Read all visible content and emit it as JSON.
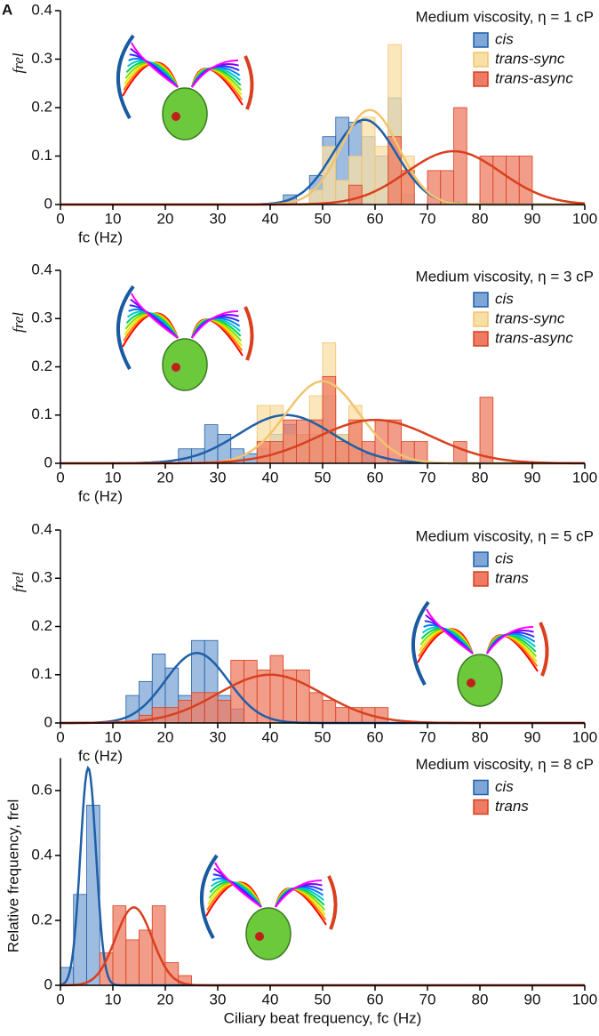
{
  "chart_data": [
    {
      "type": "histogram",
      "panel_label": "A",
      "title": "Medium viscosity, η = 1 cP",
      "xlabel": "fc (Hz)",
      "ylabel": "frel",
      "xlim": [
        0,
        100
      ],
      "xticks": [
        0,
        10,
        20,
        30,
        40,
        50,
        60,
        70,
        80,
        90,
        100
      ],
      "ylim": [
        0,
        0.4
      ],
      "yticks": [
        0,
        0.1,
        0.2,
        0.3,
        0.4
      ],
      "legend": "upper right",
      "series": [
        {
          "name": "cis",
          "color": "#1f5fa8",
          "fill": "#7ea6d6",
          "bins": [
            42.5,
            45,
            47.5,
            50,
            52.5,
            55,
            57.5,
            60,
            62.5,
            65,
            67.5
          ],
          "values": [
            0.02,
            0,
            0.06,
            0.14,
            0.18,
            0.17,
            0.14,
            0.1,
            0.22,
            0.02
          ],
          "fit": {
            "mean": 58,
            "sd": 6,
            "peak": 0.175
          }
        },
        {
          "name": "trans-sync",
          "color": "#f2c46e",
          "fill": "#f8dfa6",
          "bins": [
            47.5,
            50,
            52.5,
            55,
            57.5,
            60,
            62.5,
            65,
            67.5
          ],
          "values": [
            0.03,
            0.12,
            0.05,
            0.1,
            0.18,
            0.12,
            0.33,
            0.1
          ],
          "fit": {
            "mean": 59,
            "sd": 5.5,
            "peak": 0.195
          }
        },
        {
          "name": "trans-async",
          "color": "#d9401f",
          "fill": "#ee7b63",
          "bins": [
            55,
            57.5,
            60,
            62.5,
            65,
            67.5,
            70,
            72.5,
            75,
            77.5,
            80,
            82.5,
            85,
            87.5,
            90
          ],
          "values": [
            0.04,
            0,
            0,
            0.14,
            0.07,
            0,
            0.07,
            0.07,
            0.2,
            0,
            0.1,
            0.1,
            0.1,
            0.1
          ],
          "fit": {
            "mean": 75,
            "sd": 9,
            "peak": 0.11
          }
        }
      ]
    },
    {
      "type": "histogram",
      "title": "Medium viscosity, η = 3 cP",
      "xlabel": "fc (Hz)",
      "ylabel": "frel",
      "xlim": [
        0,
        100
      ],
      "xticks": [
        0,
        10,
        20,
        30,
        40,
        50,
        60,
        70,
        80,
        90,
        100
      ],
      "ylim": [
        0,
        0.4
      ],
      "yticks": [
        0,
        0.1,
        0.2,
        0.3,
        0.4
      ],
      "legend": "upper right",
      "series": [
        {
          "name": "cis",
          "color": "#1f5fa8",
          "fill": "#7ea6d6",
          "bins": [
            22.5,
            25,
            27.5,
            30,
            32.5,
            35,
            37.5,
            40,
            42.5,
            45,
            47.5,
            50,
            52.5,
            55,
            57.5,
            60
          ],
          "values": [
            0.03,
            0.03,
            0.08,
            0.06,
            0.03,
            0.02,
            0.03,
            0.06,
            0.08,
            0.06,
            0.06,
            0.14,
            0.06,
            0.03,
            0.02
          ],
          "fit": {
            "mean": 43,
            "sd": 9,
            "peak": 0.1
          }
        },
        {
          "name": "trans-sync",
          "color": "#f2c46e",
          "fill": "#f8dfa6",
          "bins": [
            37.5,
            40,
            42.5,
            45,
            47.5,
            50,
            52.5,
            55,
            57.5
          ],
          "values": [
            0.12,
            0.12,
            0.06,
            0.06,
            0.14,
            0.25,
            0.06,
            0.12
          ],
          "fit": {
            "mean": 50,
            "sd": 7,
            "peak": 0.17
          }
        },
        {
          "name": "trans-async",
          "color": "#d9401f",
          "fill": "#ee7b63",
          "bins": [
            37.5,
            40,
            42.5,
            45,
            47.5,
            50,
            52.5,
            55,
            57.5,
            60,
            62.5,
            65,
            67.5,
            70,
            72.5,
            75,
            77.5,
            80,
            82.5
          ],
          "values": [
            0.045,
            0.045,
            0.09,
            0.09,
            0.09,
            0.18,
            0.045,
            0.09,
            0.045,
            0.09,
            0.09,
            0.045,
            0.045,
            0,
            0,
            0.045,
            0,
            0.137
          ],
          "fit": {
            "mean": 60,
            "sd": 11,
            "peak": 0.09
          }
        }
      ]
    },
    {
      "type": "histogram",
      "title": "Medium viscosity, η = 5 cP",
      "xlabel": "fc (Hz)",
      "ylabel": "frel",
      "xlim": [
        0,
        100
      ],
      "xticks": [
        0,
        10,
        20,
        30,
        40,
        50,
        60,
        70,
        80,
        90,
        100
      ],
      "ylim": [
        0,
        0.4
      ],
      "yticks": [
        0,
        0.1,
        0.2,
        0.3,
        0.4
      ],
      "legend": "upper right",
      "series": [
        {
          "name": "cis",
          "color": "#1f5fa8",
          "fill": "#7ea6d6",
          "bins": [
            12.5,
            15,
            17.5,
            20,
            22.5,
            25,
            27.5,
            30,
            32.5,
            35
          ],
          "values": [
            0.057,
            0.086,
            0.143,
            0.114,
            0.057,
            0.171,
            0.171,
            0.057,
            0.029
          ],
          "fit": {
            "mean": 26,
            "sd": 6,
            "peak": 0.145
          }
        },
        {
          "name": "trans",
          "color": "#d9401f",
          "fill": "#ee7b63",
          "bins": [
            15,
            17.5,
            20,
            22.5,
            25,
            27.5,
            30,
            32.5,
            35,
            37.5,
            40,
            42.5,
            45,
            47.5,
            50,
            52.5,
            55,
            57.5,
            60,
            62.5
          ],
          "values": [
            0.016,
            0.032,
            0.032,
            0.047,
            0.063,
            0.063,
            0.047,
            0.13,
            0.13,
            0.11,
            0.14,
            0.11,
            0.11,
            0.063,
            0.047,
            0.032,
            0.032,
            0.032,
            0.032
          ],
          "fit": {
            "mean": 40,
            "sd": 10,
            "peak": 0.1
          }
        }
      ]
    },
    {
      "type": "histogram",
      "title": "Medium viscosity, η = 8 cP",
      "xlabel": "Ciliary beat frequency, fc (Hz)",
      "ylabel": "Relative frequency, frel",
      "xlim": [
        0,
        100
      ],
      "xticks": [
        0,
        10,
        20,
        30,
        40,
        50,
        60,
        70,
        80,
        90,
        100
      ],
      "ylim": [
        0,
        0.7
      ],
      "yticks": [
        0,
        0.2,
        0.4,
        0.6
      ],
      "legend": "upper right",
      "series": [
        {
          "name": "cis",
          "color": "#1f5fa8",
          "fill": "#7ea6d6",
          "bins": [
            0,
            2.5,
            5,
            7.5
          ],
          "values": [
            0.055,
            0.28,
            0.555
          ],
          "fit": {
            "mean": 5.3,
            "sd": 1.5,
            "peak": 0.67
          }
        },
        {
          "name": "trans",
          "color": "#d9401f",
          "fill": "#ee7b63",
          "bins": [
            7.5,
            10,
            12.5,
            15,
            17.5,
            20,
            22.5,
            25
          ],
          "values": [
            0.1,
            0.245,
            0.14,
            0.17,
            0.245,
            0.07,
            0.03
          ],
          "fit": {
            "mean": 14,
            "sd": 3.5,
            "peak": 0.24
          }
        }
      ]
    }
  ]
}
